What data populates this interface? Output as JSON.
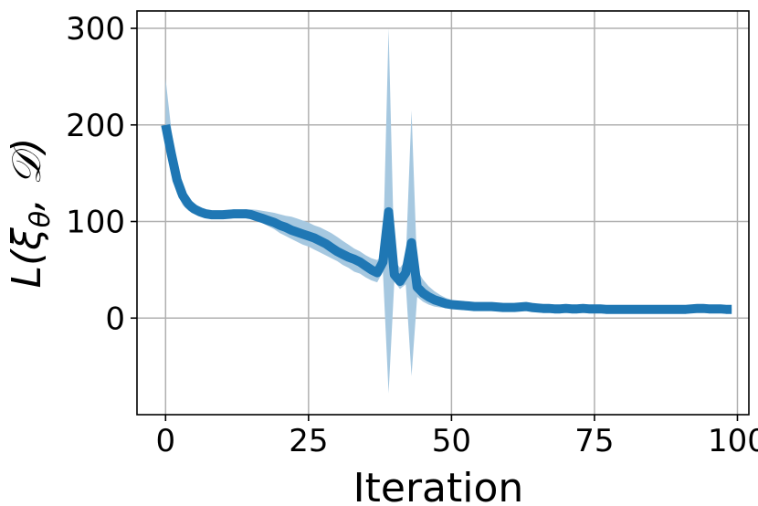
{
  "chart_data": {
    "type": "line",
    "xlabel": "Iteration",
    "ylabel": "L(ξθ, 𝒟)",
    "ylabel_parts": {
      "main": "L(ξ",
      "sub": "θ",
      "rest": ", 𝒟)"
    },
    "xlim": [
      -5,
      102
    ],
    "ylim": [
      -100,
      318
    ],
    "xticks": [
      0,
      25,
      50,
      75,
      100
    ],
    "yticks": [
      0,
      100,
      200,
      300
    ],
    "grid": true,
    "legend": "none",
    "colors": {
      "line": "#1f77b4",
      "band": "#a6c8e0"
    },
    "series": [
      {
        "x": [
          0,
          1,
          2,
          3,
          4,
          5,
          6,
          7,
          8,
          9,
          10,
          11,
          12,
          13,
          14,
          15,
          16,
          17,
          18,
          19,
          20,
          21,
          22,
          23,
          24,
          25,
          26,
          27,
          28,
          29,
          30,
          31,
          32,
          33,
          34,
          35,
          36,
          37,
          38,
          39,
          40,
          41,
          42,
          43,
          44,
          45,
          46,
          47,
          48,
          49,
          50,
          51,
          52,
          53,
          54,
          55,
          56,
          57,
          58,
          59,
          60,
          61,
          62,
          63,
          64,
          65,
          66,
          67,
          68,
          69,
          70,
          71,
          72,
          73,
          74,
          75,
          76,
          77,
          78,
          79,
          80,
          81,
          82,
          83,
          84,
          85,
          86,
          87,
          88,
          89,
          90,
          91,
          92,
          93,
          94,
          95,
          96,
          97,
          98,
          99
        ],
        "mean": [
          200,
          170,
          143,
          127,
          118,
          113,
          110,
          108,
          107,
          107,
          107,
          107.5,
          108,
          108,
          108,
          107,
          105,
          103,
          101,
          99,
          96,
          94,
          91,
          89,
          87,
          85,
          83,
          80,
          77,
          73,
          69,
          66,
          63,
          61,
          58,
          54,
          50,
          47,
          58,
          110,
          45,
          38,
          47,
          78,
          32,
          26,
          22,
          19,
          17,
          15,
          14,
          13.5,
          13,
          12.5,
          12,
          12,
          12,
          12,
          11.5,
          11,
          11,
          11,
          11.5,
          12,
          11,
          10.5,
          10,
          10,
          9.5,
          9.5,
          10,
          9.5,
          9.5,
          10,
          9.5,
          9.5,
          9.5,
          9,
          9,
          9,
          9,
          9,
          9,
          9,
          9,
          9,
          9,
          9,
          9,
          9,
          9,
          9,
          9.5,
          10,
          10,
          9.5,
          9.5,
          9.5,
          9,
          9
        ],
        "upper": [
          248,
          195,
          160,
          138,
          125,
          119,
          115,
          112,
          111,
          110.5,
          110.5,
          111,
          111.5,
          112,
          112.5,
          112.5,
          112,
          111,
          110,
          109,
          107.5,
          106,
          105,
          103,
          101,
          99,
          96,
          94,
          91,
          88,
          84,
          80,
          76,
          72,
          69,
          65,
          62,
          60,
          65,
          300,
          60,
          52,
          60,
          215,
          50,
          40,
          33,
          28,
          24,
          21,
          19,
          17,
          15.5,
          14.5,
          14,
          13.5,
          13.5,
          13,
          13,
          12.5,
          12.5,
          12.5,
          12.5,
          13,
          12.5,
          12,
          11.5,
          11,
          11,
          11,
          11,
          11,
          11,
          11,
          11,
          10.5,
          10.5,
          10.5,
          10.5,
          10.5,
          10.5,
          10.5,
          10.5,
          10.5,
          10.5,
          10.5,
          10.5,
          10.5,
          10.5,
          10.5,
          10.5,
          11,
          11,
          11,
          11,
          11,
          10.5,
          10.5,
          10,
          10
        ],
        "lower": [
          185,
          148,
          129,
          117,
          111,
          108,
          106,
          104.5,
          104,
          104,
          104,
          104.5,
          105,
          105,
          104.5,
          103,
          101,
          98,
          95,
          92,
          88,
          85,
          82,
          79,
          76,
          74,
          71,
          68,
          65,
          62,
          59,
          55,
          52,
          48,
          46,
          42,
          39,
          37,
          48,
          -78,
          38,
          30,
          35,
          -60,
          22,
          17,
          14,
          12,
          11,
          10.5,
          10,
          10,
          10,
          10,
          10,
          10,
          10,
          10,
          10,
          9.5,
          9.5,
          9.5,
          10,
          10.5,
          9.5,
          9,
          8.5,
          8.5,
          8,
          8,
          8.5,
          8,
          8,
          8.5,
          8,
          8,
          8,
          7.5,
          7.5,
          7.5,
          7.5,
          7.5,
          7.5,
          7.5,
          7.5,
          7.5,
          7.5,
          7.5,
          7.5,
          7.5,
          7.5,
          7.5,
          8,
          8.5,
          8.5,
          8,
          8,
          8,
          7.5,
          7.5
        ]
      }
    ]
  }
}
